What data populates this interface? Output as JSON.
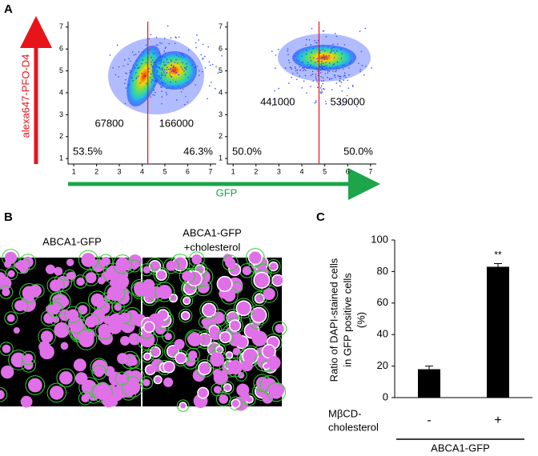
{
  "panel_labels": [
    "A",
    "B",
    "C"
  ],
  "shared_axes": {
    "ylabel": "alexa647-PFO-D4",
    "xlabel": "GFP"
  },
  "chart_data": [
    {
      "type": "density-scatter",
      "xlim": [
        0.75,
        7.25
      ],
      "ylim": [
        0.75,
        7.25
      ],
      "xticks": [
        1,
        2,
        3,
        4,
        5,
        6,
        7
      ],
      "yticks": [
        1,
        2,
        3,
        4,
        5,
        6,
        7
      ],
      "gate_x": 4.25,
      "quadrant_labels": [
        "67800",
        "166000",
        "53.5%",
        "46.3%"
      ]
    },
    {
      "type": "density-scatter",
      "xlim": [
        0.75,
        7.25
      ],
      "ylim": [
        0.75,
        7.25
      ],
      "xticks": [
        1,
        2,
        3,
        4,
        5,
        6,
        7
      ],
      "yticks": [
        1,
        2,
        3,
        4,
        5,
        6,
        7
      ],
      "gate_x": 4.75,
      "quadrant_labels": [
        "441000",
        "539000",
        "50.0%",
        "50.0%"
      ]
    },
    {
      "type": "bar",
      "ylabel": [
        "Ratio of DAPI-stained cells",
        "in GFP positive cells",
        "(%)"
      ],
      "categories": [
        "-",
        "+"
      ],
      "xlabel": [
        "MβCD-",
        "cholesterol"
      ],
      "group_label": "ABCA1-GFP",
      "values": [
        18,
        83
      ],
      "errors": [
        2,
        2
      ],
      "significance": [
        null,
        "**"
      ],
      "color": "#000000",
      "ylim": [
        0,
        100
      ],
      "yticks": [
        0,
        20,
        40,
        60,
        80,
        100
      ]
    }
  ],
  "images": {
    "labels": [
      "ABCA1-GFP",
      [
        "ABCA1-GFP",
        "+cholesterol"
      ]
    ]
  }
}
